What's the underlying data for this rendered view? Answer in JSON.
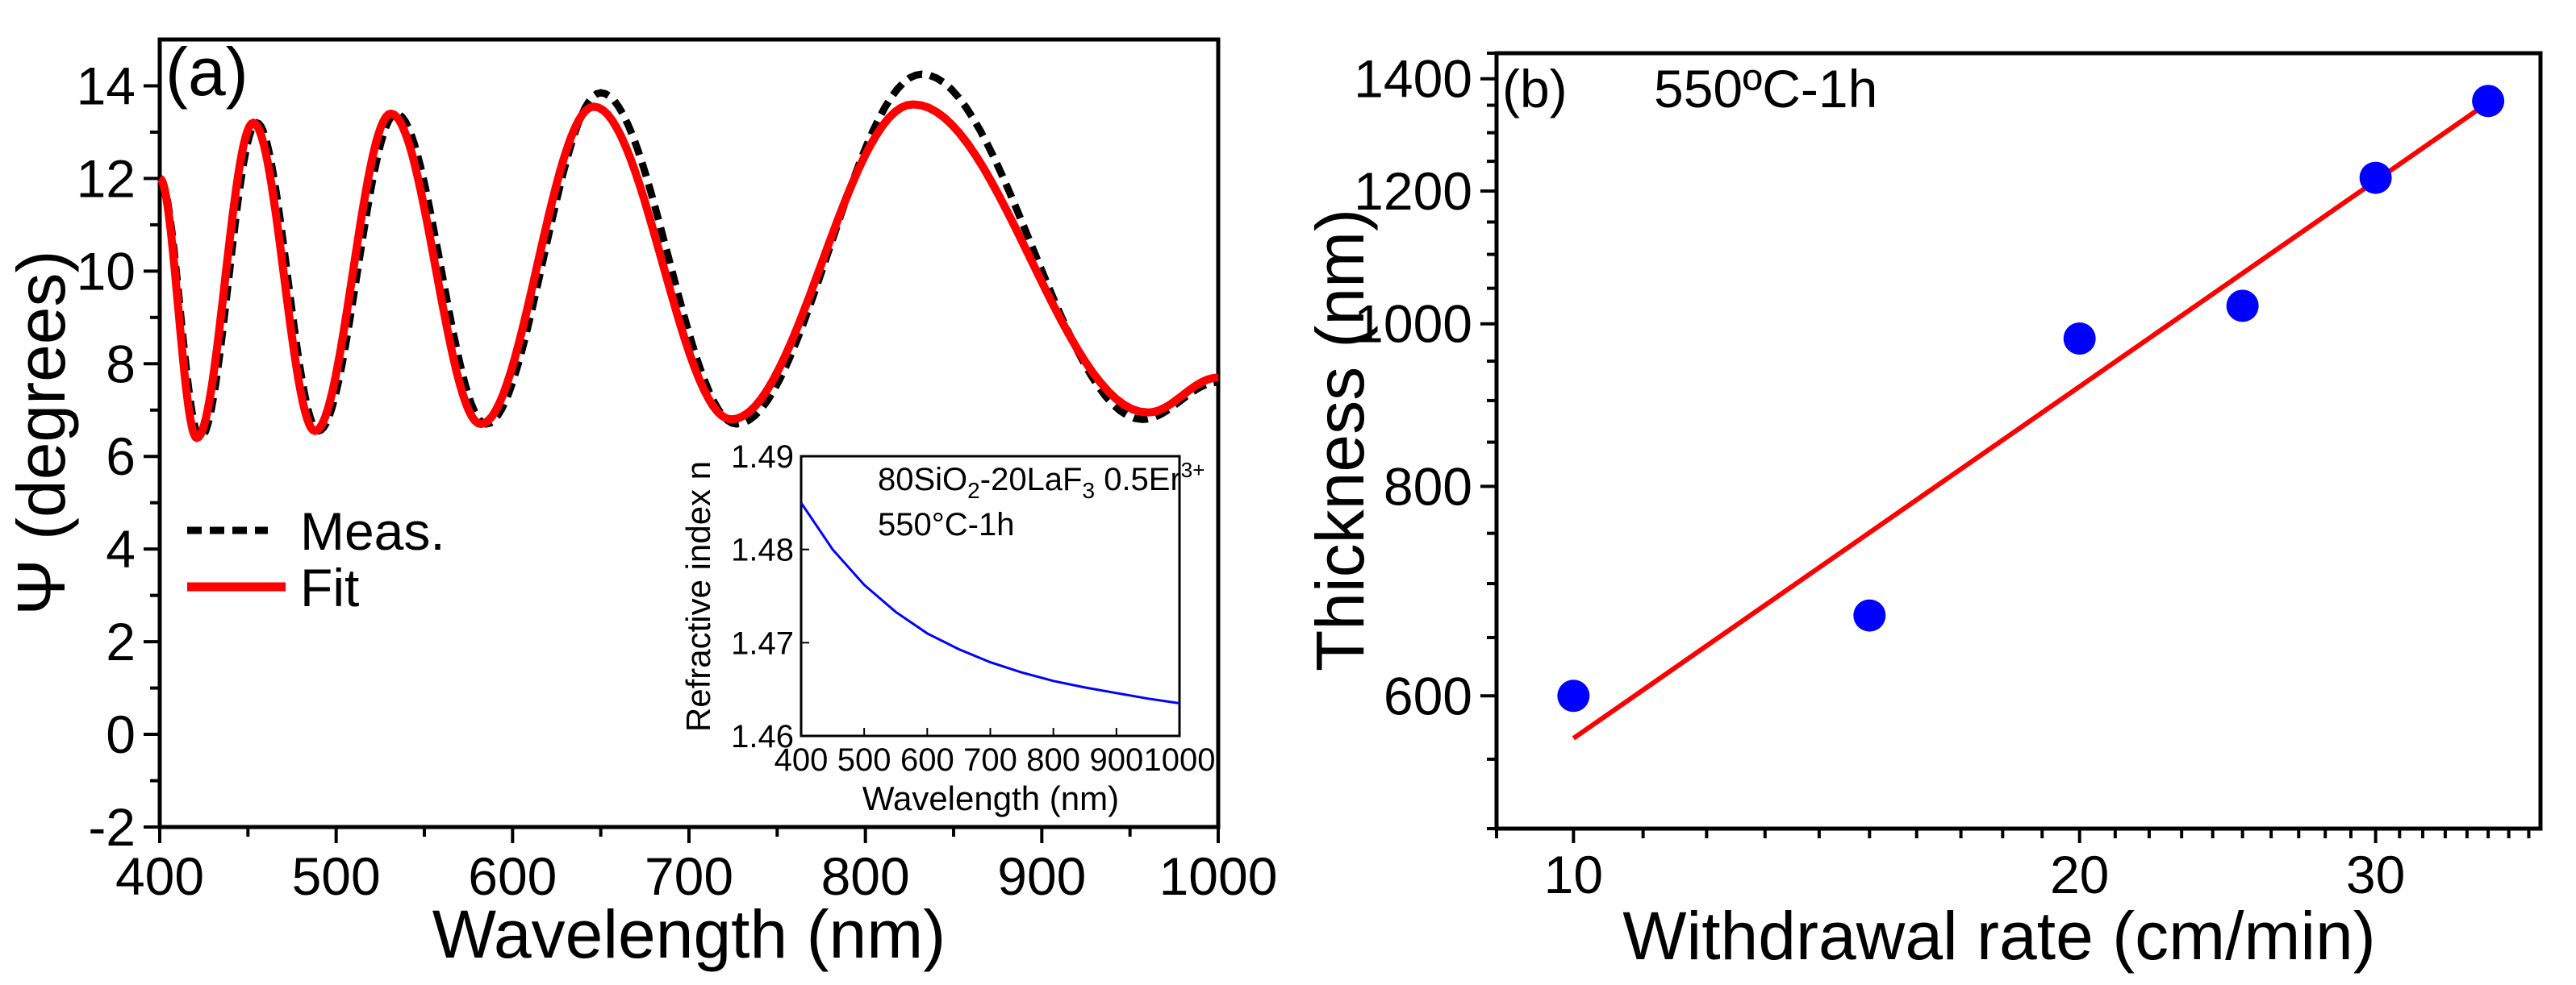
{
  "chart_data": [
    {
      "type": "line",
      "panel_label": "(a)",
      "xlabel": "Wavelength (nm)",
      "ylabel": "Ψ (degrees)",
      "xlim": [
        400,
        1000
      ],
      "ylim": [
        -2,
        15
      ],
      "xticks": [
        400,
        500,
        600,
        700,
        800,
        900,
        1000
      ],
      "yticks": [
        -2,
        0,
        2,
        4,
        6,
        8,
        10,
        12,
        14
      ],
      "legend": {
        "placement": "middle-left",
        "entries": [
          "Meas.",
          "Fit"
        ]
      },
      "series": [
        {
          "name": "Meas.",
          "color": "#000000",
          "style": "dashed",
          "x": [
            400,
            423,
            455,
            490,
            534,
            585,
            650,
            727,
            832,
            957,
            1000
          ],
          "y": [
            12.0,
            6.4,
            13.2,
            6.55,
            13.4,
            6.7,
            13.85,
            6.7,
            14.25,
            6.8,
            7.6
          ]
        },
        {
          "name": "Fit",
          "color": "#ff0000",
          "style": "solid",
          "x": [
            400,
            421,
            453,
            488,
            531,
            582,
            646,
            724,
            827,
            960,
            1000
          ],
          "y": [
            12.0,
            6.4,
            13.2,
            6.55,
            13.4,
            6.7,
            13.55,
            6.8,
            13.6,
            6.95,
            7.7
          ]
        }
      ],
      "inset": {
        "type": "line",
        "annotation_line1": "80SiO",
        "sub1": "2",
        "annotation_mid": "-20LaF",
        "sub2": "3",
        "annotation_tail": " 0.5Er",
        "sup": "3+",
        "annotation_line2": "550°C-1h",
        "xlabel": "Wavelength (nm)",
        "ylabel": "Refractive index n",
        "xlim": [
          400,
          1000
        ],
        "ylim": [
          1.46,
          1.49
        ],
        "xticks": [
          400,
          500,
          600,
          700,
          800,
          900,
          1000
        ],
        "yticks": [
          "1.46",
          "1.47",
          "1.48",
          "1.49"
        ],
        "series": [
          {
            "name": "n",
            "color": "#0000ff",
            "x": [
              400,
              450,
              500,
              550,
              600,
              650,
              700,
              750,
              800,
              850,
              900,
              950,
              1000
            ],
            "y": [
              1.485,
              1.48,
              1.4762,
              1.4733,
              1.471,
              1.4693,
              1.4679,
              1.4668,
              1.4659,
              1.4652,
              1.4646,
              1.464,
              1.4635
            ]
          }
        ]
      }
    },
    {
      "type": "scatter",
      "panel_label": "(b)",
      "annotation": "550ºC-1h",
      "xlabel": "Withdrawal rate (cm/min)",
      "ylabel": "Thickness (nm)",
      "xscale": "log",
      "yscale": "log",
      "xlim": [
        9,
        37.6
      ],
      "ylim": [
        500,
        1450
      ],
      "xticks": [
        10,
        20,
        30
      ],
      "yticks": [
        600,
        800,
        1000,
        1200,
        1400
      ],
      "series": [
        {
          "name": "data",
          "color": "#0000ff",
          "marker": "circle",
          "x": [
            10,
            15,
            20,
            25,
            30,
            35
          ],
          "y": [
            600,
            670,
            980,
            1025,
            1222,
            1358
          ]
        },
        {
          "name": "fit",
          "color": "#ff0000",
          "style": "solid",
          "x": [
            10,
            35
          ],
          "y": [
            566,
            1355
          ]
        }
      ]
    }
  ]
}
